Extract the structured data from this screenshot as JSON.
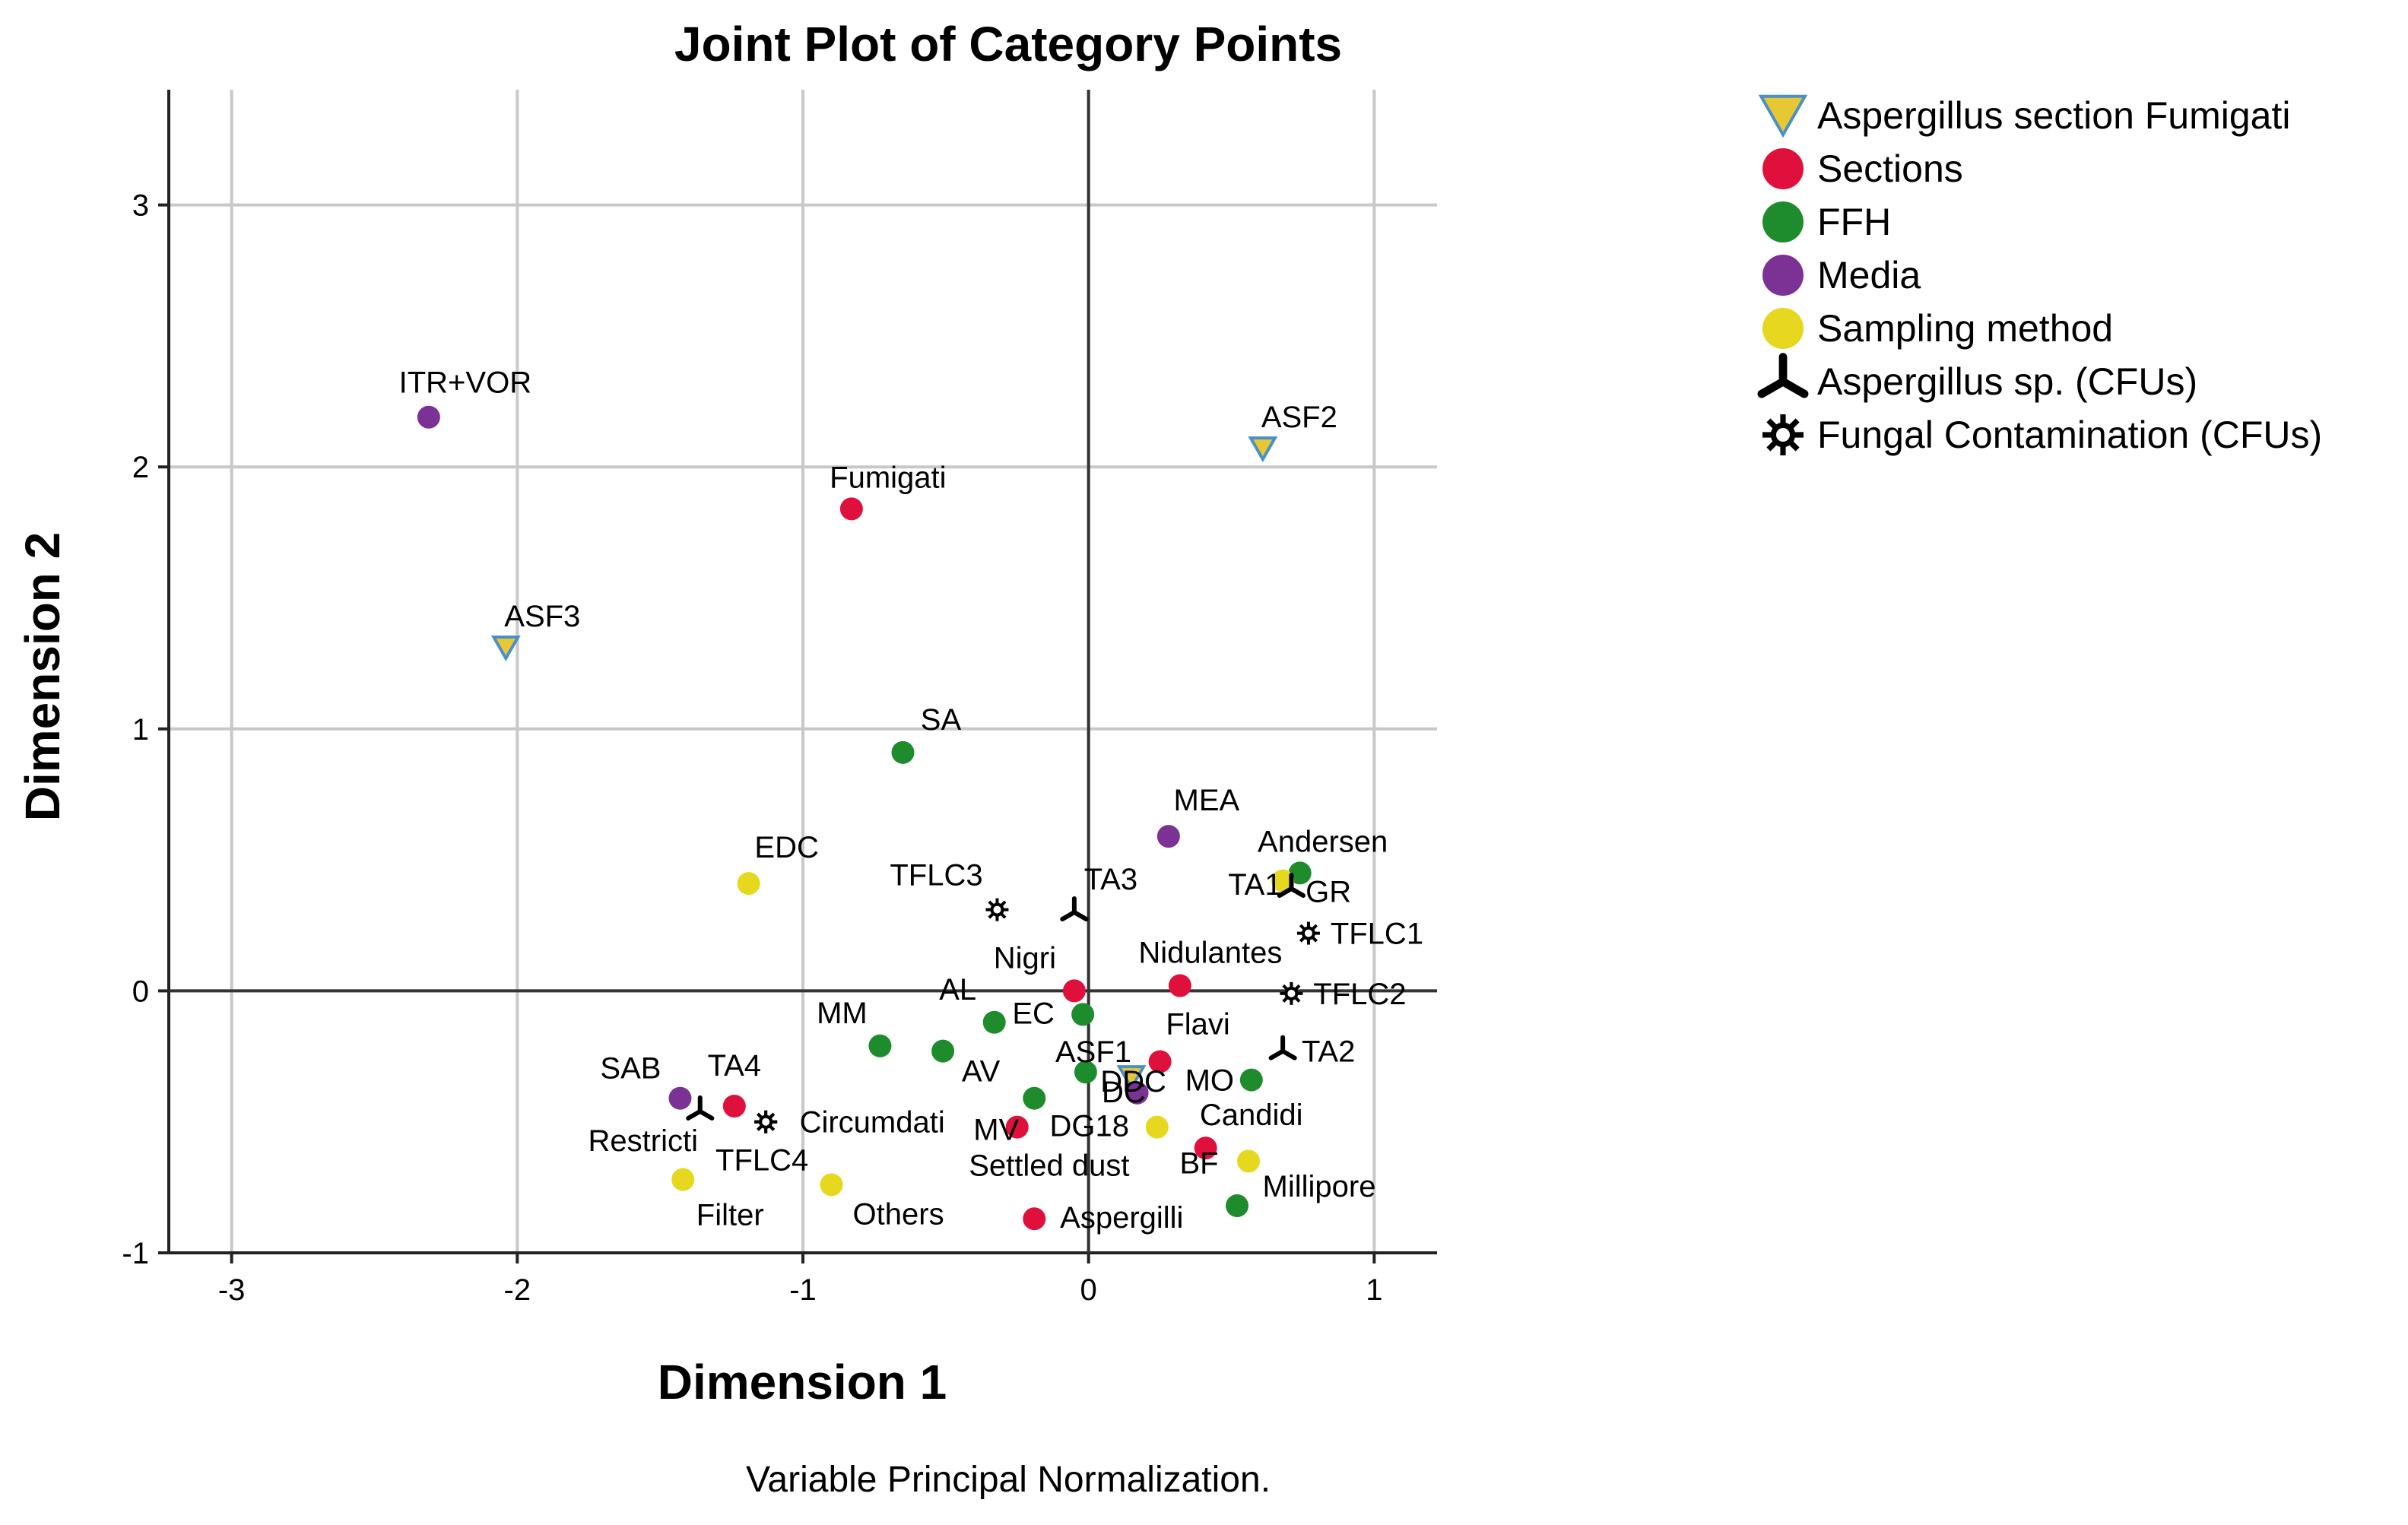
{
  "chart_data": {
    "type": "scatter",
    "title": "Joint Plot of Category Points",
    "xlabel": "Dimension 1",
    "ylabel": "Dimension 2",
    "footnote": "Variable Principal Normalization.",
    "xlim": [
      -3.22,
      1.22
    ],
    "ylim": [
      -1.0,
      3.44
    ],
    "xticks": [
      -3,
      -2,
      -1,
      0,
      1
    ],
    "yticks": [
      -1,
      0,
      1,
      2,
      3
    ],
    "grid": true,
    "legend_position": "right",
    "series": [
      {
        "name": "Aspergillus section Fumigati",
        "marker": "triangle-down",
        "color": "#e8c832",
        "stroke": "#4a90c8",
        "points": [
          {
            "label": "ASF2",
            "x": 0.61,
            "y": 2.07
          },
          {
            "label": "ASF3",
            "x": -2.04,
            "y": 1.31
          },
          {
            "label": "ASF1",
            "x": 0.15,
            "y": -0.33
          }
        ]
      },
      {
        "name": "Sections",
        "marker": "circle",
        "color": "#e0103c",
        "points": [
          {
            "label": "Fumigati",
            "x": -0.83,
            "y": 1.84
          },
          {
            "label": "Nigri",
            "x": -0.05,
            "y": 0.0
          },
          {
            "label": "Nidulantes",
            "x": 0.32,
            "y": 0.02
          },
          {
            "label": "Flavi",
            "x": 0.25,
            "y": -0.27
          },
          {
            "label": "Candidi",
            "x": 0.41,
            "y": -0.6
          },
          {
            "label": "TA4",
            "x": -1.24,
            "y": -0.44
          },
          {
            "label": "DG18",
            "x": -0.25,
            "y": -0.52
          },
          {
            "label": "Aspergilli",
            "x": -0.19,
            "y": -0.87
          }
        ]
      },
      {
        "name": "FFH",
        "marker": "circle",
        "color": "#1e8c2c",
        "points": [
          {
            "label": "SA",
            "x": -0.65,
            "y": 0.91
          },
          {
            "label": "Andersen",
            "x": 0.74,
            "y": 0.45
          },
          {
            "label": "AL",
            "x": -0.33,
            "y": -0.12
          },
          {
            "label": "EC",
            "x": -0.02,
            "y": -0.09
          },
          {
            "label": "MM",
            "x": -0.73,
            "y": -0.21
          },
          {
            "label": "AV",
            "x": -0.51,
            "y": -0.23
          },
          {
            "label": "DC",
            "x": -0.01,
            "y": -0.31
          },
          {
            "label": "MO",
            "x": 0.57,
            "y": -0.34
          },
          {
            "label": "MV",
            "x": -0.19,
            "y": -0.41
          },
          {
            "label": "Millipore",
            "x": 0.52,
            "y": -0.82
          }
        ]
      },
      {
        "name": "Media",
        "marker": "circle",
        "color": "#7b3294",
        "points": [
          {
            "label": "ITR+VOR",
            "x": -2.31,
            "y": 2.19
          },
          {
            "label": "MEA",
            "x": 0.28,
            "y": 0.59
          },
          {
            "label": "DDC",
            "x": 0.17,
            "y": -0.39
          },
          {
            "label": "SAB",
            "x": -1.43,
            "y": -0.41
          }
        ]
      },
      {
        "name": "Sampling method",
        "marker": "circle",
        "color": "#e6d81e",
        "points": [
          {
            "label": "EDC",
            "x": -1.19,
            "y": 0.41
          },
          {
            "label": "GR",
            "x": 0.68,
            "y": 0.42
          },
          {
            "label": "Settled dust",
            "x": 0.24,
            "y": -0.52
          },
          {
            "label": "BF",
            "x": 0.56,
            "y": -0.65
          },
          {
            "label": "Filter",
            "x": -1.42,
            "y": -0.72
          },
          {
            "label": "Others",
            "x": -0.9,
            "y": -0.74
          }
        ]
      },
      {
        "name": "Aspergillus sp. (CFUs)",
        "marker": "tri-star",
        "color": "#000000",
        "points": [
          {
            "label": "TA3",
            "x": -0.05,
            "y": 0.3
          },
          {
            "label": "TA1",
            "x": 0.71,
            "y": 0.39
          },
          {
            "label": "TA2",
            "x": 0.68,
            "y": -0.23
          },
          {
            "label": "Restricti",
            "x": -1.36,
            "y": -0.46
          }
        ]
      },
      {
        "name": "Fungal Contamination (CFUs)",
        "marker": "sun",
        "color": "#000000",
        "points": [
          {
            "label": "TFLC3",
            "x": -0.32,
            "y": 0.31
          },
          {
            "label": "TFLC1",
            "x": 0.77,
            "y": 0.22
          },
          {
            "label": "TFLC2",
            "x": 0.71,
            "y": -0.01
          },
          {
            "label": "Circumdati",
            "x": -1.13,
            "y": -0.5
          },
          {
            "label": "TFLC4",
            "x": -1.13,
            "y": -0.5
          }
        ]
      }
    ]
  }
}
